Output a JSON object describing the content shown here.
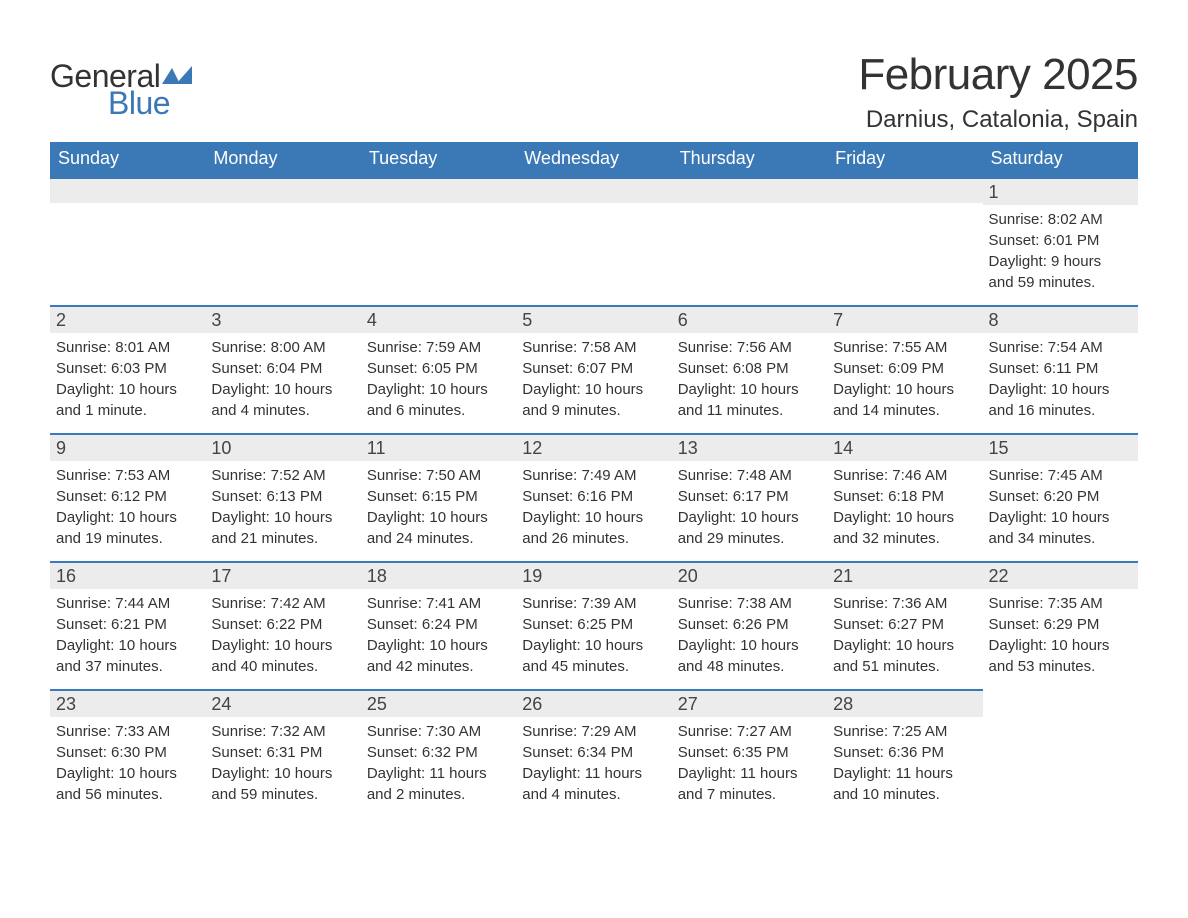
{
  "logo": {
    "general": "General",
    "blue": "Blue"
  },
  "title": "February 2025",
  "location": "Darnius, Catalonia, Spain",
  "colors": {
    "header_bg": "#3a78b6",
    "header_text": "#ffffff",
    "daynum_bg": "#ececec",
    "accent_border": "#3a78b6",
    "text": "#333333",
    "page_bg": "#ffffff"
  },
  "weekdays": [
    "Sunday",
    "Monday",
    "Tuesday",
    "Wednesday",
    "Thursday",
    "Friday",
    "Saturday"
  ],
  "weeks": [
    [
      null,
      null,
      null,
      null,
      null,
      null,
      {
        "n": "1",
        "sunrise": "Sunrise: 8:02 AM",
        "sunset": "Sunset: 6:01 PM",
        "day1": "Daylight: 9 hours",
        "day2": "and 59 minutes."
      }
    ],
    [
      {
        "n": "2",
        "sunrise": "Sunrise: 8:01 AM",
        "sunset": "Sunset: 6:03 PM",
        "day1": "Daylight: 10 hours",
        "day2": "and 1 minute."
      },
      {
        "n": "3",
        "sunrise": "Sunrise: 8:00 AM",
        "sunset": "Sunset: 6:04 PM",
        "day1": "Daylight: 10 hours",
        "day2": "and 4 minutes."
      },
      {
        "n": "4",
        "sunrise": "Sunrise: 7:59 AM",
        "sunset": "Sunset: 6:05 PM",
        "day1": "Daylight: 10 hours",
        "day2": "and 6 minutes."
      },
      {
        "n": "5",
        "sunrise": "Sunrise: 7:58 AM",
        "sunset": "Sunset: 6:07 PM",
        "day1": "Daylight: 10 hours",
        "day2": "and 9 minutes."
      },
      {
        "n": "6",
        "sunrise": "Sunrise: 7:56 AM",
        "sunset": "Sunset: 6:08 PM",
        "day1": "Daylight: 10 hours",
        "day2": "and 11 minutes."
      },
      {
        "n": "7",
        "sunrise": "Sunrise: 7:55 AM",
        "sunset": "Sunset: 6:09 PM",
        "day1": "Daylight: 10 hours",
        "day2": "and 14 minutes."
      },
      {
        "n": "8",
        "sunrise": "Sunrise: 7:54 AM",
        "sunset": "Sunset: 6:11 PM",
        "day1": "Daylight: 10 hours",
        "day2": "and 16 minutes."
      }
    ],
    [
      {
        "n": "9",
        "sunrise": "Sunrise: 7:53 AM",
        "sunset": "Sunset: 6:12 PM",
        "day1": "Daylight: 10 hours",
        "day2": "and 19 minutes."
      },
      {
        "n": "10",
        "sunrise": "Sunrise: 7:52 AM",
        "sunset": "Sunset: 6:13 PM",
        "day1": "Daylight: 10 hours",
        "day2": "and 21 minutes."
      },
      {
        "n": "11",
        "sunrise": "Sunrise: 7:50 AM",
        "sunset": "Sunset: 6:15 PM",
        "day1": "Daylight: 10 hours",
        "day2": "and 24 minutes."
      },
      {
        "n": "12",
        "sunrise": "Sunrise: 7:49 AM",
        "sunset": "Sunset: 6:16 PM",
        "day1": "Daylight: 10 hours",
        "day2": "and 26 minutes."
      },
      {
        "n": "13",
        "sunrise": "Sunrise: 7:48 AM",
        "sunset": "Sunset: 6:17 PM",
        "day1": "Daylight: 10 hours",
        "day2": "and 29 minutes."
      },
      {
        "n": "14",
        "sunrise": "Sunrise: 7:46 AM",
        "sunset": "Sunset: 6:18 PM",
        "day1": "Daylight: 10 hours",
        "day2": "and 32 minutes."
      },
      {
        "n": "15",
        "sunrise": "Sunrise: 7:45 AM",
        "sunset": "Sunset: 6:20 PM",
        "day1": "Daylight: 10 hours",
        "day2": "and 34 minutes."
      }
    ],
    [
      {
        "n": "16",
        "sunrise": "Sunrise: 7:44 AM",
        "sunset": "Sunset: 6:21 PM",
        "day1": "Daylight: 10 hours",
        "day2": "and 37 minutes."
      },
      {
        "n": "17",
        "sunrise": "Sunrise: 7:42 AM",
        "sunset": "Sunset: 6:22 PM",
        "day1": "Daylight: 10 hours",
        "day2": "and 40 minutes."
      },
      {
        "n": "18",
        "sunrise": "Sunrise: 7:41 AM",
        "sunset": "Sunset: 6:24 PM",
        "day1": "Daylight: 10 hours",
        "day2": "and 42 minutes."
      },
      {
        "n": "19",
        "sunrise": "Sunrise: 7:39 AM",
        "sunset": "Sunset: 6:25 PM",
        "day1": "Daylight: 10 hours",
        "day2": "and 45 minutes."
      },
      {
        "n": "20",
        "sunrise": "Sunrise: 7:38 AM",
        "sunset": "Sunset: 6:26 PM",
        "day1": "Daylight: 10 hours",
        "day2": "and 48 minutes."
      },
      {
        "n": "21",
        "sunrise": "Sunrise: 7:36 AM",
        "sunset": "Sunset: 6:27 PM",
        "day1": "Daylight: 10 hours",
        "day2": "and 51 minutes."
      },
      {
        "n": "22",
        "sunrise": "Sunrise: 7:35 AM",
        "sunset": "Sunset: 6:29 PM",
        "day1": "Daylight: 10 hours",
        "day2": "and 53 minutes."
      }
    ],
    [
      {
        "n": "23",
        "sunrise": "Sunrise: 7:33 AM",
        "sunset": "Sunset: 6:30 PM",
        "day1": "Daylight: 10 hours",
        "day2": "and 56 minutes."
      },
      {
        "n": "24",
        "sunrise": "Sunrise: 7:32 AM",
        "sunset": "Sunset: 6:31 PM",
        "day1": "Daylight: 10 hours",
        "day2": "and 59 minutes."
      },
      {
        "n": "25",
        "sunrise": "Sunrise: 7:30 AM",
        "sunset": "Sunset: 6:32 PM",
        "day1": "Daylight: 11 hours",
        "day2": "and 2 minutes."
      },
      {
        "n": "26",
        "sunrise": "Sunrise: 7:29 AM",
        "sunset": "Sunset: 6:34 PM",
        "day1": "Daylight: 11 hours",
        "day2": "and 4 minutes."
      },
      {
        "n": "27",
        "sunrise": "Sunrise: 7:27 AM",
        "sunset": "Sunset: 6:35 PM",
        "day1": "Daylight: 11 hours",
        "day2": "and 7 minutes."
      },
      {
        "n": "28",
        "sunrise": "Sunrise: 7:25 AM",
        "sunset": "Sunset: 6:36 PM",
        "day1": "Daylight: 11 hours",
        "day2": "and 10 minutes."
      },
      null
    ]
  ]
}
